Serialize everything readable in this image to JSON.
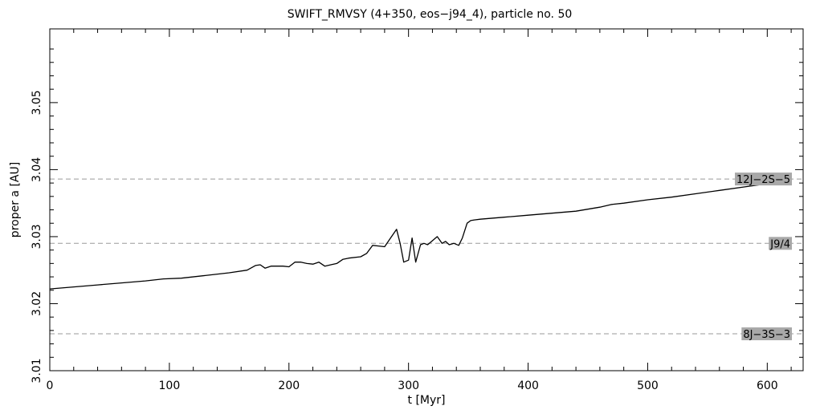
{
  "chart_data": {
    "type": "line",
    "title": "SWIFT_RMVSY (4+350, eos−j94_4), particle no. 50",
    "xlabel": "t [Myr]",
    "ylabel": "proper a [AU]",
    "xlim": [
      0,
      630
    ],
    "ylim": [
      3.01,
      3.061
    ],
    "x_ticks": [
      0,
      100,
      200,
      300,
      400,
      500,
      600
    ],
    "x_tick_labels": [
      "0",
      "100",
      "200",
      "300",
      "400",
      "500",
      "600"
    ],
    "y_ticks": [
      3.01,
      3.02,
      3.03,
      3.04,
      3.05
    ],
    "y_tick_labels": [
      "3.01",
      "3.02",
      "3.03",
      "3.04",
      "3.05"
    ],
    "grid": false,
    "resonances": [
      {
        "label": "12J−2S−5",
        "a": 3.0386
      },
      {
        "label": "J9/4",
        "a": 3.029
      },
      {
        "label": "8J−3S−3",
        "a": 3.0155
      }
    ],
    "series": [
      {
        "x": [
          0,
          20,
          40,
          60,
          80,
          95,
          110,
          130,
          150,
          165,
          172,
          176,
          180,
          185,
          190,
          195,
          200,
          205,
          210,
          215,
          220,
          225,
          230,
          235,
          240,
          245,
          250,
          260,
          265,
          270,
          275,
          280,
          285,
          290,
          293,
          296,
          300,
          303,
          306,
          310,
          313,
          316,
          320,
          324,
          328,
          331,
          334,
          338,
          342,
          345,
          349,
          352,
          355,
          360,
          380,
          400,
          420,
          440,
          450,
          460,
          470,
          480,
          500,
          520,
          540,
          560,
          580,
          600,
          620
        ],
        "y": [
          3.0222,
          3.0225,
          3.0228,
          3.0231,
          3.0234,
          3.0237,
          3.0238,
          3.0242,
          3.0246,
          3.025,
          3.0257,
          3.0258,
          3.0253,
          3.0256,
          3.0256,
          3.0256,
          3.0255,
          3.0262,
          3.0262,
          3.026,
          3.0259,
          3.0262,
          3.0256,
          3.0258,
          3.026,
          3.0266,
          3.0268,
          3.027,
          3.0275,
          3.0287,
          3.0286,
          3.0285,
          3.0298,
          3.0311,
          3.029,
          3.0262,
          3.0265,
          3.0298,
          3.0262,
          3.0288,
          3.029,
          3.0288,
          3.0294,
          3.03,
          3.029,
          3.0293,
          3.0288,
          3.029,
          3.0287,
          3.0298,
          3.032,
          3.0324,
          3.0325,
          3.0326,
          3.0329,
          3.0332,
          3.0335,
          3.0338,
          3.0341,
          3.0344,
          3.0348,
          3.035,
          3.0355,
          3.0359,
          3.0364,
          3.0369,
          3.0374,
          3.0379,
          3.0383
        ]
      }
    ]
  }
}
